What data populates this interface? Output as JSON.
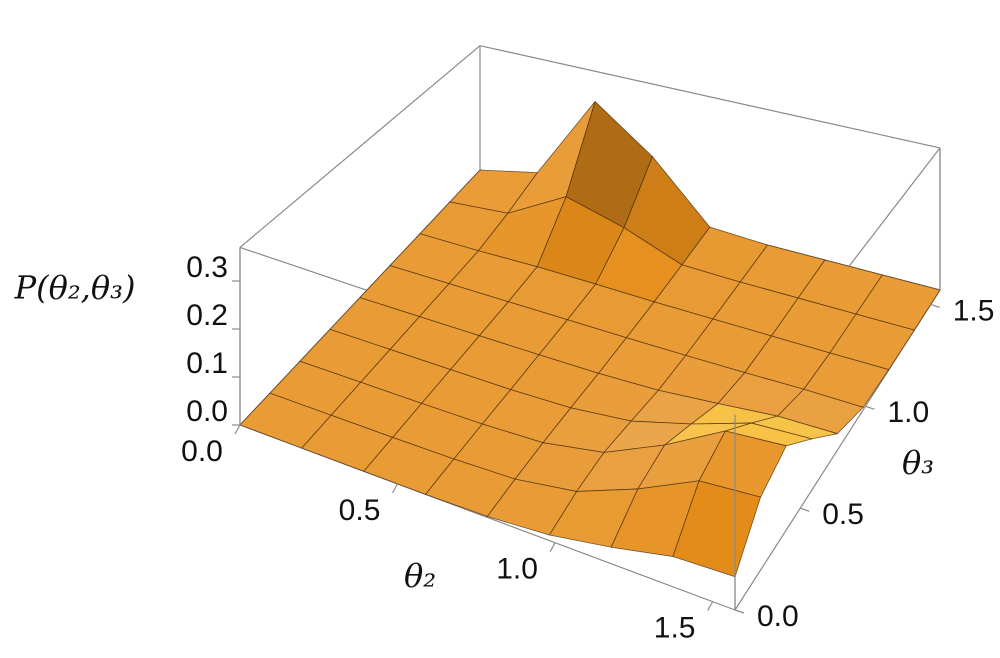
{
  "chart_data": {
    "type": "surface",
    "xlabel": "θ₂",
    "ylabel": "θ₃",
    "zlabel": "P(θ₂,θ₃)",
    "x": [
      0,
      0.196,
      0.393,
      0.589,
      0.785,
      0.982,
      1.178,
      1.374,
      1.571
    ],
    "y": [
      0,
      0.196,
      0.393,
      0.589,
      0.785,
      0.982,
      1.178,
      1.374,
      1.571
    ],
    "z": [
      [
        0,
        0,
        0,
        0,
        0.002,
        0.011,
        0.032,
        0.058,
        0.063
      ],
      [
        0,
        0,
        0,
        0.001,
        0.005,
        0.025,
        0.074,
        0.133,
        0.143
      ],
      [
        0,
        0,
        0,
        0.001,
        0.006,
        0.03,
        0.089,
        0.16,
        0.171
      ],
      [
        0,
        0,
        0,
        0,
        0.004,
        0.019,
        0.056,
        0.1,
        0.108
      ],
      [
        0,
        0,
        0,
        0,
        0.001,
        0.006,
        0.019,
        0.033,
        0.036
      ],
      [
        0,
        0,
        0,
        0,
        0,
        0.001,
        0.003,
        0.006,
        0.006
      ],
      [
        0,
        0,
        0.003,
        0.002,
        0,
        0,
        0,
        0,
        0.001
      ],
      [
        0,
        0.013,
        0.102,
        0.06,
        0.003,
        0,
        0,
        0,
        0
      ],
      [
        0,
        0.036,
        0.283,
        0.165,
        0.008,
        0,
        0,
        0,
        0
      ]
    ],
    "xlim": [
      0,
      1.571
    ],
    "ylim": [
      0,
      1.571
    ],
    "zlim": [
      0,
      0.37
    ],
    "xticks": [
      {
        "value": 0,
        "label": "0.0"
      },
      0.5,
      {
        "value": 1,
        "label": "1.0"
      },
      1.5
    ],
    "yticks": [
      {
        "value": 0,
        "label": "0.0"
      },
      0.5,
      {
        "value": 1,
        "label": "1.0"
      },
      1.5
    ],
    "zticks": [
      {
        "value": 0,
        "label": "0.0"
      },
      0.1,
      0.2,
      0.3
    ],
    "color": "#f2a53a",
    "mesh": true
  }
}
